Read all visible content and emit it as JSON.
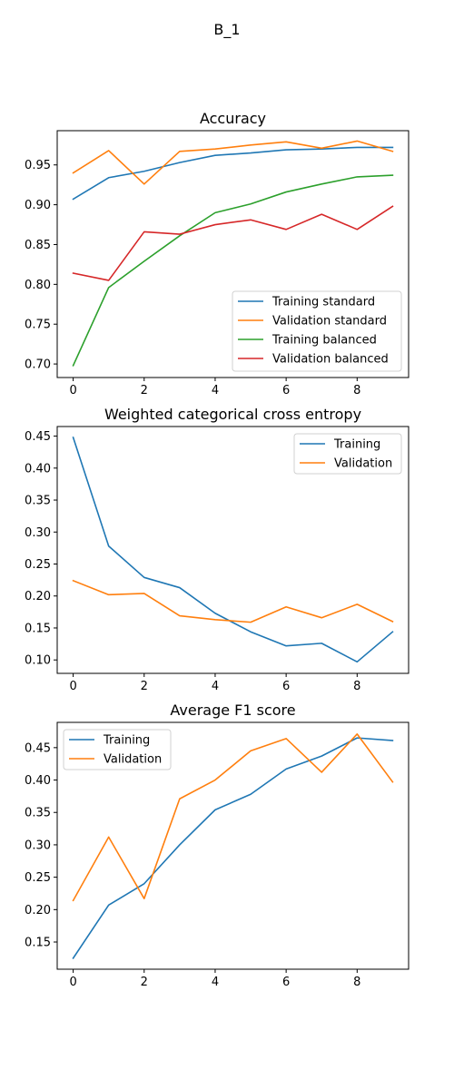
{
  "figure_title": "B_1",
  "chart_data": [
    {
      "type": "line",
      "title": "Accuracy",
      "xlabel": "",
      "ylabel": "",
      "x": [
        0,
        1,
        2,
        3,
        4,
        5,
        6,
        7,
        8,
        9
      ],
      "xlim": [
        -0.45,
        9.45
      ],
      "ylim": [
        0.683,
        0.993
      ],
      "xticks": [
        0,
        2,
        4,
        6,
        8
      ],
      "yticks": [
        0.7,
        0.75,
        0.8,
        0.85,
        0.9,
        0.95
      ],
      "ytick_labels": [
        "0.70",
        "0.75",
        "0.80",
        "0.85",
        "0.90",
        "0.95"
      ],
      "grid": false,
      "legend_position": "lower-right",
      "series": [
        {
          "name": "Training standard",
          "color": "#1f77b4",
          "values": [
            0.907,
            0.934,
            0.942,
            0.953,
            0.962,
            0.965,
            0.969,
            0.97,
            0.972,
            0.972
          ]
        },
        {
          "name": "Validation standard",
          "color": "#ff7f0e",
          "values": [
            0.94,
            0.968,
            0.926,
            0.967,
            0.97,
            0.975,
            0.979,
            0.971,
            0.98,
            0.967
          ]
        },
        {
          "name": "Training balanced",
          "color": "#2ca02c",
          "values": [
            0.698,
            0.796,
            0.829,
            0.861,
            0.89,
            0.901,
            0.916,
            0.926,
            0.935,
            0.937
          ]
        },
        {
          "name": "Validation balanced",
          "color": "#d62728",
          "values": [
            0.814,
            0.805,
            0.866,
            0.863,
            0.875,
            0.881,
            0.869,
            0.888,
            0.869,
            0.898
          ]
        }
      ]
    },
    {
      "type": "line",
      "title": "Weighted categorical cross entropy",
      "xlabel": "",
      "ylabel": "",
      "x": [
        0,
        1,
        2,
        3,
        4,
        5,
        6,
        7,
        8,
        9
      ],
      "xlim": [
        -0.45,
        9.45
      ],
      "ylim": [
        0.079,
        0.465
      ],
      "xticks": [
        0,
        2,
        4,
        6,
        8
      ],
      "yticks": [
        0.1,
        0.15,
        0.2,
        0.25,
        0.3,
        0.35,
        0.4,
        0.45
      ],
      "ytick_labels": [
        "0.10",
        "0.15",
        "0.20",
        "0.25",
        "0.30",
        "0.35",
        "0.40",
        "0.45"
      ],
      "grid": false,
      "legend_position": "upper-right",
      "series": [
        {
          "name": "Training",
          "color": "#1f77b4",
          "values": [
            0.448,
            0.278,
            0.229,
            0.213,
            0.173,
            0.144,
            0.122,
            0.126,
            0.097,
            0.144
          ]
        },
        {
          "name": "Validation",
          "color": "#ff7f0e",
          "values": [
            0.224,
            0.202,
            0.204,
            0.169,
            0.163,
            0.159,
            0.183,
            0.166,
            0.187,
            0.16
          ]
        }
      ]
    },
    {
      "type": "line",
      "title": "Average F1 score",
      "xlabel": "",
      "ylabel": "",
      "x": [
        0,
        1,
        2,
        3,
        4,
        5,
        6,
        7,
        8,
        9
      ],
      "xlim": [
        -0.45,
        9.45
      ],
      "ylim": [
        0.108,
        0.489
      ],
      "xticks": [
        0,
        2,
        4,
        6,
        8
      ],
      "yticks": [
        0.15,
        0.2,
        0.25,
        0.3,
        0.35,
        0.4,
        0.45
      ],
      "ytick_labels": [
        "0.15",
        "0.20",
        "0.25",
        "0.30",
        "0.35",
        "0.40",
        "0.45"
      ],
      "grid": false,
      "legend_position": "upper-left",
      "series": [
        {
          "name": "Training",
          "color": "#1f77b4",
          "values": [
            0.125,
            0.207,
            0.24,
            0.3,
            0.354,
            0.378,
            0.417,
            0.437,
            0.465,
            0.461
          ]
        },
        {
          "name": "Validation",
          "color": "#ff7f0e",
          "values": [
            0.214,
            0.312,
            0.217,
            0.371,
            0.4,
            0.445,
            0.464,
            0.412,
            0.471,
            0.397
          ]
        }
      ]
    }
  ]
}
